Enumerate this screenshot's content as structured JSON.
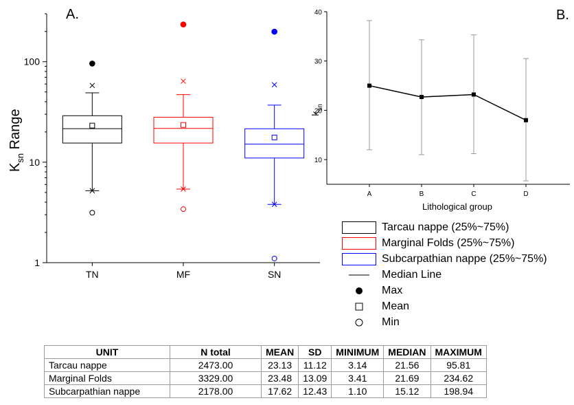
{
  "panel_a": {
    "label": "A.",
    "ylabel_main": "K",
    "ylabel_sub": "sn",
    "ylabel_rest": " Range",
    "chart_data": {
      "type": "box",
      "yscale": "log",
      "ylim": [
        1,
        300
      ],
      "yticks": [
        {
          "value": 1,
          "label": "1"
        },
        {
          "value": 10,
          "label": "10"
        },
        {
          "value": 100,
          "label": "100"
        }
      ],
      "categories": [
        "TN",
        "MF",
        "SN"
      ],
      "series": [
        {
          "category": "TN",
          "color": "#000000",
          "q1": 15.5,
          "median": 21.56,
          "q3": 29,
          "whisker_low": 5.2,
          "whisker_high": 49,
          "mean": 23.13,
          "min": 3.14,
          "max": 95.81,
          "x_low": 5.2,
          "x_high": 58
        },
        {
          "category": "MF",
          "color": "#ff0000",
          "q1": 15.5,
          "median": 21.69,
          "q3": 28,
          "whisker_low": 5.4,
          "whisker_high": 47,
          "mean": 23.48,
          "min": 3.41,
          "max": 234.62,
          "x_low": 5.4,
          "x_high": 64
        },
        {
          "category": "SN",
          "color": "#0000ff",
          "q1": 11,
          "median": 15.12,
          "q3": 21.5,
          "whisker_low": 3.8,
          "whisker_high": 37,
          "mean": 17.62,
          "min": 1.1,
          "max": 198.94,
          "x_low": 3.8,
          "x_high": 59
        }
      ]
    }
  },
  "panel_b": {
    "label": "B.",
    "ylabel_main": "k",
    "ylabel_sub": "sn",
    "xlabel": "Lithological group",
    "chart_data": {
      "type": "line",
      "categories": [
        "A",
        "B",
        "C",
        "D"
      ],
      "ylim": [
        5,
        40
      ],
      "yticks": [
        10,
        20,
        30,
        40
      ],
      "values": [
        25,
        22.7,
        23.2,
        18
      ],
      "error_low": [
        12,
        11,
        11.2,
        5.7
      ],
      "error_high": [
        38.2,
        34.3,
        35.3,
        30.5
      ]
    }
  },
  "legend": {
    "items": [
      {
        "kind": "box",
        "color": "#000000",
        "label": "Tarcau nappe (25%~75%)"
      },
      {
        "kind": "box",
        "color": "#ff0000",
        "label": "Marginal Folds (25%~75%)"
      },
      {
        "kind": "box",
        "color": "#0000ff",
        "label": "Subcarpathian nappe (25%~75%)"
      },
      {
        "kind": "line",
        "label": "Median Line"
      },
      {
        "kind": "dot",
        "label": "Max"
      },
      {
        "kind": "square",
        "label": "Mean"
      },
      {
        "kind": "circle",
        "label": "Min"
      }
    ]
  },
  "table": {
    "headers": [
      "UNIT",
      "N total",
      "MEAN",
      "SD",
      "MINIMUM",
      "MEDIAN",
      "MAXIMUM"
    ],
    "rows": [
      [
        "Tarcau nappe",
        "2473.00",
        "23.13",
        "11.12",
        "3.14",
        "21.56",
        "95.81"
      ],
      [
        "Marginal Folds",
        "3329.00",
        "23.48",
        "13.09",
        "3.41",
        "21.69",
        "234.62"
      ],
      [
        "Subcarpathian nappe",
        "2178.00",
        "17.62",
        "12.43",
        "1.10",
        "15.12",
        "198.94"
      ]
    ]
  }
}
